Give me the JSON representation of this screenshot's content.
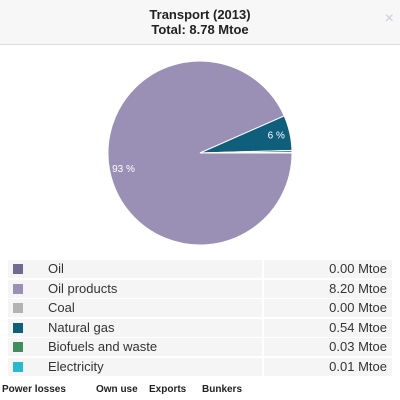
{
  "chart_data": {
    "type": "pie",
    "title": "Transport (2013)",
    "subtitle": "Total: 8.78 Mtoe",
    "categories": [
      "Oil",
      "Oil products",
      "Coal",
      "Natural gas",
      "Biofuels and waste",
      "Electricity"
    ],
    "values": [
      0.0,
      8.2,
      0.0,
      0.54,
      0.03,
      0.01
    ],
    "value_labels": [
      "0.00 Mtoe",
      "8.20 Mtoe",
      "0.00 Mtoe",
      "0.54 Mtoe",
      "0.03 Mtoe",
      "0.01 Mtoe"
    ],
    "slice_labels": [
      null,
      "93 %",
      null,
      "6 %",
      null,
      null
    ],
    "colors": [
      "#6f6a92",
      "#9a90b6",
      "#b3b3b3",
      "#0f5e7c",
      "#3f8f5c",
      "#27b9d0"
    ]
  },
  "close": "×",
  "footer": {
    "links": [
      "Power losses",
      "Own use",
      "Exports",
      "Bunkers"
    ]
  }
}
